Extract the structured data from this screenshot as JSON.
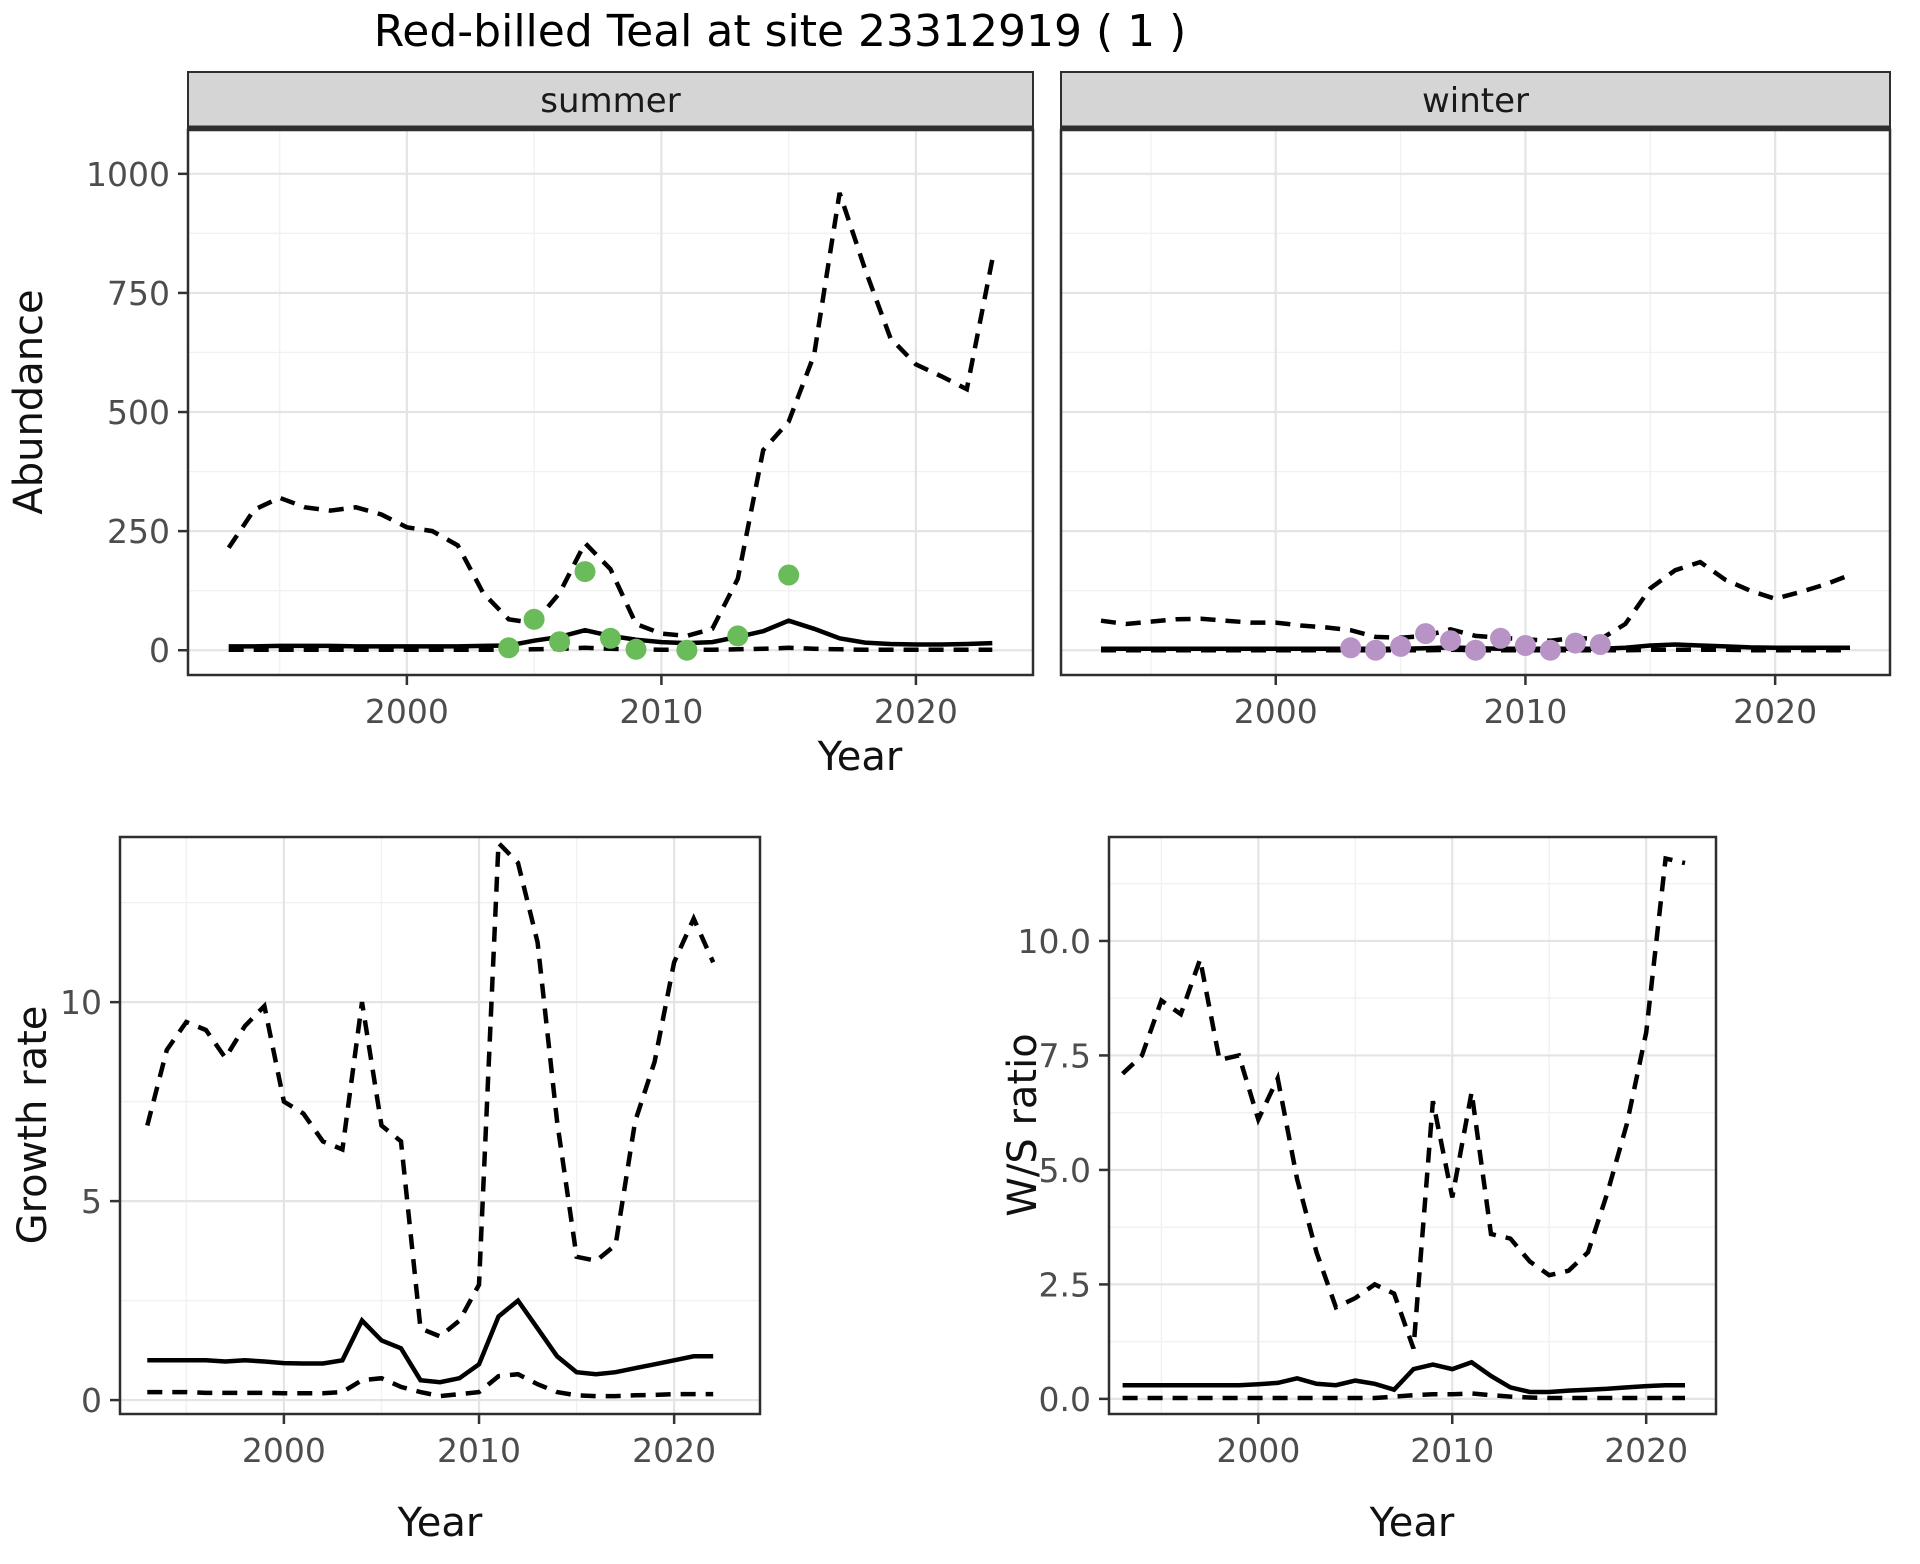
{
  "title": "Red-billed Teal at site 23312919 ( 1 )",
  "style": {
    "background": "#ffffff",
    "line_color": "#000000",
    "grid_major": "#e4e4e4",
    "grid_minor": "#f1f1f1",
    "strip_bg": "#d5d5d5",
    "panel_border": "#2e2e2e",
    "tick_text": "#4d4d4d",
    "summer_point_color": "#6ABB5A",
    "winter_point_color": "#B794C5"
  },
  "chart_data": [
    {
      "id": "abundance_summer",
      "type": "line",
      "facet_label": "summer",
      "ylabel": "Abundance",
      "xlabel": "Year",
      "legend": "none",
      "grid": true,
      "x_ticks": [
        2000,
        2010,
        2020
      ],
      "x_tick_labels": [
        "2000",
        "2010",
        "2020"
      ],
      "y_ticks": [
        0,
        250,
        500,
        750,
        1000
      ],
      "y_tick_labels": [
        "0",
        "250",
        "500",
        "750",
        "1000"
      ],
      "x_minor": [
        1995,
        2005,
        2015
      ],
      "y_minor": [
        125,
        375,
        625,
        875
      ],
      "xlim": [
        1991.4,
        2024.6
      ],
      "ylim": [
        -52,
        1092
      ],
      "x": [
        1993,
        1994,
        1995,
        1996,
        1997,
        1998,
        1999,
        2000,
        2001,
        2002,
        2003,
        2004,
        2005,
        2006,
        2007,
        2008,
        2009,
        2010,
        2011,
        2012,
        2013,
        2014,
        2015,
        2016,
        2017,
        2018,
        2019,
        2020,
        2021,
        2022,
        2023
      ],
      "series": [
        {
          "name": "upper_95ci",
          "linestyle": "dashed",
          "color": "#000000",
          "values": [
            215,
            295,
            320,
            300,
            293,
            300,
            285,
            258,
            250,
            220,
            120,
            65,
            57,
            120,
            225,
            170,
            55,
            35,
            30,
            45,
            150,
            420,
            480,
            620,
            960,
            800,
            655,
            600,
            575,
            548,
            820
          ]
        },
        {
          "name": "median",
          "linestyle": "solid",
          "color": "#000000",
          "values": [
            8,
            8,
            9,
            9,
            9,
            8,
            8,
            8,
            8,
            8,
            9,
            10,
            20,
            28,
            42,
            30,
            22,
            17,
            15,
            17,
            28,
            40,
            62,
            45,
            25,
            16,
            13,
            12,
            12,
            13,
            15
          ]
        },
        {
          "name": "lower_95ci",
          "linestyle": "dashed",
          "color": "#000000",
          "values": [
            1,
            1,
            1,
            1,
            1,
            1,
            1,
            1,
            1,
            1,
            1,
            1,
            2,
            3,
            5,
            3,
            2,
            1,
            1,
            1,
            2,
            3,
            5,
            3,
            2,
            1,
            1,
            1,
            1,
            1,
            1
          ]
        }
      ],
      "points": {
        "name": "observed_counts_summer",
        "color": "#6ABB5A",
        "x": [
          2004,
          2005,
          2006,
          2007,
          2008,
          2009,
          2011,
          2013,
          2015
        ],
        "values": [
          5,
          65,
          18,
          165,
          25,
          2,
          0,
          30,
          158
        ]
      }
    },
    {
      "id": "abundance_winter",
      "type": "line",
      "facet_label": "winter",
      "ylabel": "",
      "xlabel": "",
      "legend": "none",
      "grid": true,
      "x_ticks": [
        2000,
        2010,
        2020
      ],
      "x_tick_labels": [
        "2000",
        "2010",
        "2020"
      ],
      "y_ticks": [
        0,
        250,
        500,
        750,
        1000
      ],
      "y_tick_labels": [],
      "x_minor": [
        1995,
        2005,
        2015
      ],
      "y_minor": [
        125,
        375,
        625,
        875
      ],
      "xlim": [
        1991.4,
        2024.6
      ],
      "ylim": [
        -52,
        1092
      ],
      "x": [
        1993,
        1994,
        1995,
        1996,
        1997,
        1998,
        1999,
        2000,
        2001,
        2002,
        2003,
        2004,
        2005,
        2006,
        2007,
        2008,
        2009,
        2010,
        2011,
        2012,
        2013,
        2014,
        2015,
        2016,
        2017,
        2018,
        2019,
        2020,
        2021,
        2022,
        2023
      ],
      "series": [
        {
          "name": "upper_95ci",
          "linestyle": "dashed",
          "color": "#000000",
          "values": [
            62,
            55,
            60,
            65,
            66,
            62,
            58,
            58,
            52,
            48,
            42,
            28,
            26,
            30,
            44,
            30,
            26,
            23,
            20,
            26,
            23,
            55,
            130,
            168,
            185,
            148,
            125,
            108,
            122,
            138,
            158
          ]
        },
        {
          "name": "median",
          "linestyle": "solid",
          "color": "#000000",
          "values": [
            3,
            3,
            3,
            3,
            3,
            3,
            3,
            3,
            3,
            3,
            3,
            3,
            3,
            4,
            6,
            4,
            3,
            3,
            3,
            3,
            3,
            5,
            10,
            12,
            10,
            8,
            6,
            5,
            5,
            5,
            5
          ]
        },
        {
          "name": "lower_95ci",
          "linestyle": "dashed",
          "color": "#000000",
          "values": [
            0,
            0,
            0,
            0,
            0,
            0,
            0,
            0,
            0,
            0,
            0,
            0,
            0,
            0,
            1,
            0,
            0,
            0,
            0,
            0,
            0,
            0,
            1,
            1,
            1,
            1,
            0,
            0,
            0,
            0,
            0
          ]
        }
      ],
      "points": {
        "name": "observed_counts_winter",
        "color": "#B794C5",
        "x": [
          2003,
          2004,
          2005,
          2006,
          2007,
          2008,
          2009,
          2010,
          2011,
          2012,
          2013
        ],
        "values": [
          5,
          0,
          8,
          35,
          20,
          0,
          25,
          10,
          0,
          15,
          12
        ]
      }
    },
    {
      "id": "growth_rate",
      "type": "line",
      "facet_label": "",
      "ylabel": "Growth rate",
      "xlabel": "Year",
      "legend": "none",
      "grid": true,
      "x_ticks": [
        2000,
        2010,
        2020
      ],
      "x_tick_labels": [
        "2000",
        "2010",
        "2020"
      ],
      "y_ticks": [
        0,
        5,
        10
      ],
      "y_tick_labels": [
        "0",
        "5",
        "10"
      ],
      "x_minor": [
        1995,
        2005,
        2015
      ],
      "y_minor": [
        2.5,
        7.5,
        12.5
      ],
      "xlim": [
        1991.6,
        2024.4
      ],
      "ylim": [
        -0.35,
        14.15
      ],
      "x": [
        1993,
        1994,
        1995,
        1996,
        1997,
        1998,
        1999,
        2000,
        2001,
        2002,
        2003,
        2004,
        2005,
        2006,
        2007,
        2008,
        2009,
        2010,
        2011,
        2012,
        2013,
        2014,
        2015,
        2016,
        2017,
        2018,
        2019,
        2020,
        2021,
        2022
      ],
      "series": [
        {
          "name": "upper_95ci",
          "linestyle": "dashed",
          "color": "#000000",
          "values": [
            6.9,
            8.8,
            9.5,
            9.3,
            8.6,
            9.4,
            9.9,
            7.5,
            7.2,
            6.5,
            6.3,
            10.0,
            6.9,
            6.5,
            1.8,
            1.6,
            2.0,
            2.9,
            14.0,
            13.5,
            11.5,
            7.0,
            3.6,
            3.5,
            3.9,
            7.0,
            8.5,
            11.0,
            12.1,
            11.0
          ]
        },
        {
          "name": "median",
          "linestyle": "solid",
          "color": "#000000",
          "values": [
            1.0,
            1.0,
            1.0,
            1.0,
            0.97,
            1.0,
            0.97,
            0.93,
            0.92,
            0.92,
            1.0,
            2.0,
            1.5,
            1.3,
            0.5,
            0.45,
            0.55,
            0.9,
            2.1,
            2.5,
            1.8,
            1.1,
            0.7,
            0.65,
            0.7,
            0.8,
            0.9,
            1.0,
            1.1,
            1.1
          ]
        },
        {
          "name": "lower_95ci",
          "linestyle": "dashed",
          "color": "#000000",
          "values": [
            0.2,
            0.2,
            0.2,
            0.18,
            0.18,
            0.18,
            0.18,
            0.17,
            0.17,
            0.17,
            0.2,
            0.5,
            0.55,
            0.33,
            0.2,
            0.1,
            0.15,
            0.2,
            0.6,
            0.65,
            0.4,
            0.2,
            0.12,
            0.1,
            0.1,
            0.12,
            0.13,
            0.15,
            0.15,
            0.15
          ]
        }
      ],
      "points": null
    },
    {
      "id": "ws_ratio",
      "type": "line",
      "facet_label": "",
      "ylabel": "W/S ratio",
      "xlabel": "Year",
      "legend": "none",
      "grid": true,
      "x_ticks": [
        2000,
        2010,
        2020
      ],
      "x_tick_labels": [
        "2000",
        "2010",
        "2020"
      ],
      "y_ticks": [
        0,
        2.5,
        5,
        7.5,
        10
      ],
      "y_tick_labels": [
        "0.0",
        "2.5",
        "5.0",
        "7.5",
        "10.0"
      ],
      "x_minor": [
        1995,
        2005,
        2015
      ],
      "y_minor": [
        1.25,
        3.75,
        6.25,
        8.75,
        11.25
      ],
      "xlim": [
        1992.3,
        2023.6
      ],
      "ylim": [
        -0.33,
        12.27
      ],
      "x": [
        1993,
        1994,
        1995,
        1996,
        1997,
        1998,
        1999,
        2000,
        2001,
        2002,
        2003,
        2004,
        2005,
        2006,
        2007,
        2008,
        2009,
        2010,
        2011,
        2012,
        2013,
        2014,
        2015,
        2016,
        2017,
        2018,
        2019,
        2020,
        2021,
        2022
      ],
      "series": [
        {
          "name": "upper_95ci",
          "linestyle": "dashed",
          "color": "#000000",
          "values": [
            7.1,
            7.5,
            8.7,
            8.4,
            9.6,
            7.4,
            7.5,
            6.1,
            7.0,
            4.8,
            3.2,
            2.0,
            2.2,
            2.5,
            2.3,
            1.1,
            6.5,
            4.4,
            6.7,
            3.6,
            3.5,
            3.0,
            2.7,
            2.8,
            3.2,
            4.5,
            6.0,
            8.0,
            11.8,
            11.7
          ]
        },
        {
          "name": "median",
          "linestyle": "solid",
          "color": "#000000",
          "values": [
            0.3,
            0.3,
            0.3,
            0.3,
            0.3,
            0.3,
            0.3,
            0.32,
            0.35,
            0.45,
            0.33,
            0.3,
            0.4,
            0.33,
            0.2,
            0.65,
            0.75,
            0.65,
            0.8,
            0.5,
            0.25,
            0.15,
            0.15,
            0.18,
            0.2,
            0.22,
            0.25,
            0.28,
            0.3,
            0.3
          ]
        },
        {
          "name": "lower_95ci",
          "linestyle": "dashed",
          "color": "#000000",
          "values": [
            0.02,
            0.02,
            0.02,
            0.02,
            0.02,
            0.02,
            0.02,
            0.02,
            0.02,
            0.02,
            0.02,
            0.02,
            0.02,
            0.02,
            0.05,
            0.08,
            0.1,
            0.1,
            0.12,
            0.08,
            0.05,
            0.03,
            0.02,
            0.02,
            0.02,
            0.02,
            0.02,
            0.02,
            0.02,
            0.02
          ]
        }
      ],
      "points": null
    }
  ]
}
